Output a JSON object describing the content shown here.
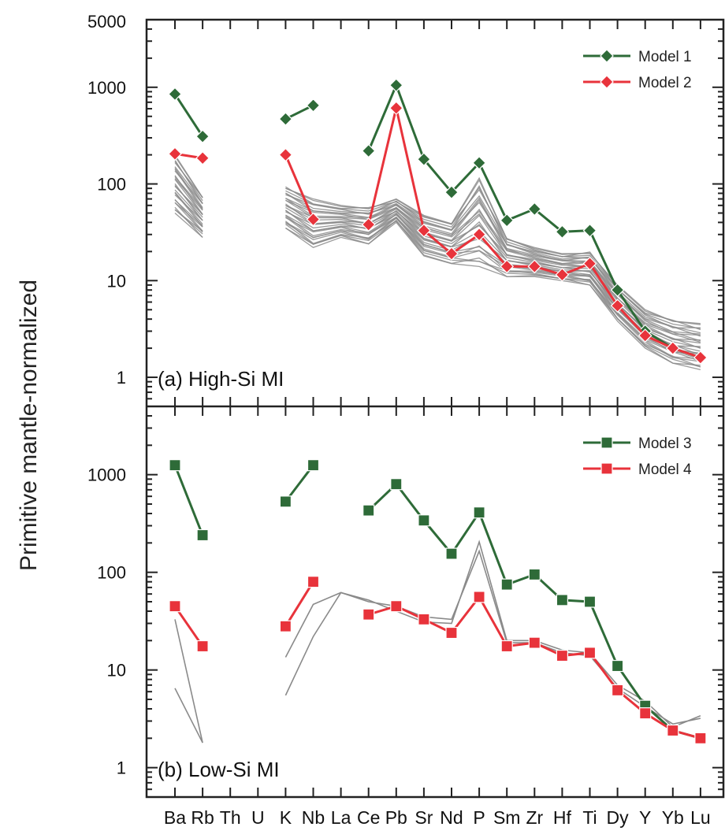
{
  "chart_data": {
    "type": "line",
    "ylabel": "Primitive mantle-normalized",
    "yscale": "log",
    "grid": false,
    "categories": [
      "Ba",
      "Rb",
      "Th",
      "U",
      "K",
      "Nb",
      "La",
      "Ce",
      "Pb",
      "Sr",
      "Nd",
      "P",
      "Sm",
      "Zr",
      "Hf",
      "Ti",
      "Dy",
      "Y",
      "Yb",
      "Lu"
    ],
    "panels": [
      {
        "label": "(a) High-Si MI",
        "ylim": [
          0.5,
          5000
        ],
        "yticks": [
          1,
          10,
          100,
          1000,
          5000
        ],
        "legend_position": "top-right",
        "series": [
          {
            "name": "Model 1",
            "color": "#2e6b38",
            "marker": "diamond",
            "values": [
              850,
              310,
              null,
              null,
              470,
              650,
              null,
              220,
              1050,
              180,
              82,
              165,
              42,
              55,
              32,
              33,
              8,
              3,
              2,
              1.6
            ]
          },
          {
            "name": "Model 2",
            "color": "#e8333b",
            "marker": "diamond",
            "values": [
              205,
              185,
              null,
              null,
              200,
              43,
              null,
              38,
              610,
              33,
              19,
              30,
              14,
              14,
              11.5,
              15,
              5.5,
              2.7,
              2,
              1.6
            ]
          }
        ],
        "gray_envelope": {
          "color": "#8a8a8a",
          "low": [
            50,
            28,
            null,
            null,
            35,
            22,
            28,
            24,
            40,
            18,
            15,
            14,
            11,
            11,
            10,
            9,
            3.8,
            2,
            1.4,
            1.2
          ],
          "high": [
            200,
            75,
            null,
            null,
            95,
            70,
            60,
            58,
            70,
            48,
            40,
            115,
            28,
            22,
            19,
            20,
            9,
            5,
            4,
            3.6
          ]
        }
      },
      {
        "label": "(b) Low-Si MI",
        "ylim": [
          0.5,
          5000
        ],
        "yticks": [
          1,
          10,
          100,
          1000
        ],
        "legend_position": "top-right",
        "series": [
          {
            "name": "Model 3",
            "color": "#2e6b38",
            "marker": "square",
            "values": [
              1250,
              240,
              null,
              null,
              530,
              1250,
              null,
              430,
              800,
              340,
              155,
              410,
              75,
              95,
              52,
              50,
              11,
              4.3,
              2.4,
              2
            ]
          },
          {
            "name": "Model 4",
            "color": "#e8333b",
            "marker": "square",
            "values": [
              45,
              17.5,
              null,
              null,
              28,
              80,
              null,
              37,
              45,
              33,
              24,
              56,
              17.5,
              19,
              14,
              15,
              6.2,
              3.6,
              2.4,
              2
            ]
          }
        ],
        "gray_lines": {
          "color": "#8a8a8a",
          "lines": [
            [
              33,
              1.8,
              null,
              null,
              5.5,
              22,
              62,
              52,
              40,
              31,
              30,
              205,
              20,
              20,
              16,
              15,
              7,
              4.8,
              2.6,
              3.4
            ],
            [
              6.5,
              1.8,
              null,
              null,
              13.5,
              47,
              62,
              50,
              45,
              35,
              33,
              165,
              19,
              19,
              15,
              14,
              6.5,
              4.2,
              2.8,
              3.2
            ]
          ]
        }
      }
    ]
  }
}
